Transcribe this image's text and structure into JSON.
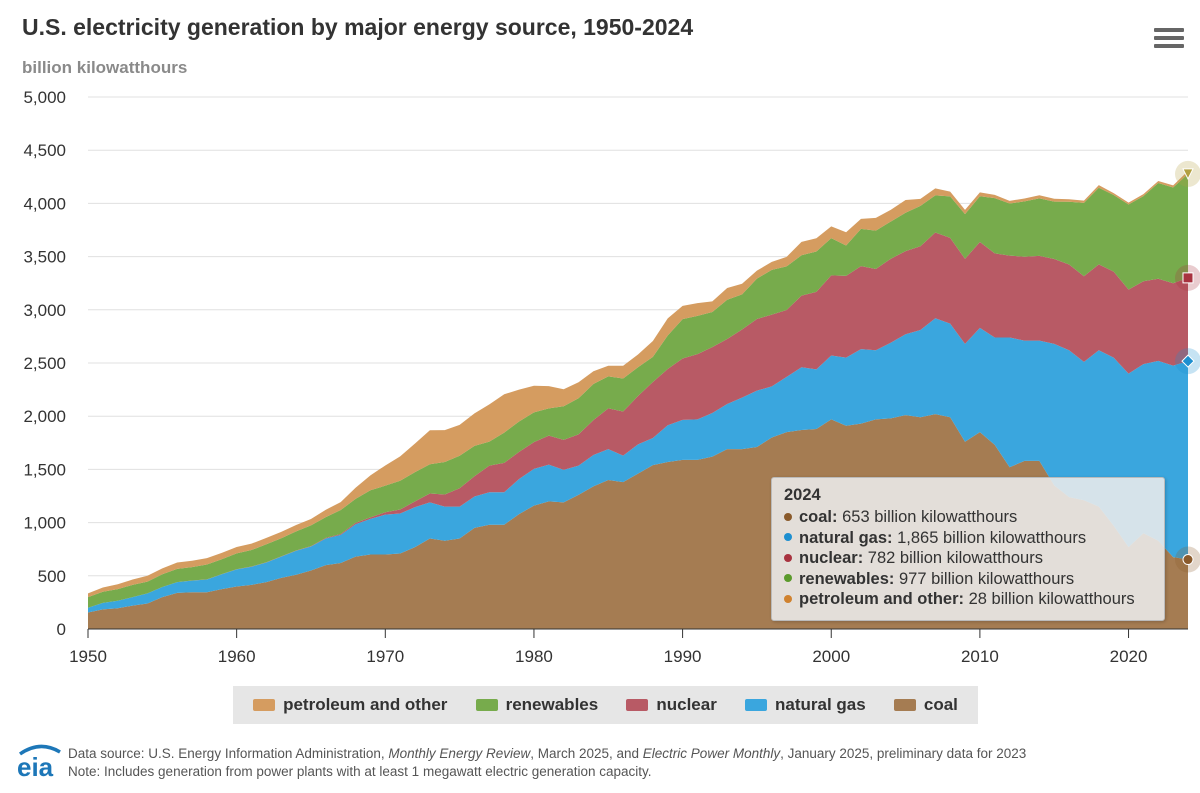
{
  "header": {
    "title": "U.S. electricity generation by major energy source, 1950-2024",
    "subtitle": "billion kilowatthours",
    "menu_icon": "hamburger-menu-icon"
  },
  "chart_data": {
    "type": "area",
    "stacked": true,
    "title": "U.S. electricity generation by major energy source, 1950-2024",
    "ylabel": "billion kilowatthours",
    "xlim": [
      1950,
      2024
    ],
    "ylim": [
      0,
      5000
    ],
    "y_ticks": [
      0,
      500,
      1000,
      1500,
      2000,
      2500,
      3000,
      3500,
      4000,
      4500,
      5000
    ],
    "y_tick_labels": [
      "0",
      "500",
      "1,000",
      "1,500",
      "2,000",
      "2,500",
      "3,000",
      "3,500",
      "4,000",
      "4,500",
      "5,000"
    ],
    "x_ticks": [
      1950,
      1960,
      1970,
      1980,
      1990,
      2000,
      2010,
      2020
    ],
    "x_tick_labels": [
      "1950",
      "1960",
      "1970",
      "1980",
      "1990",
      "2000",
      "2010",
      "2020"
    ],
    "x": [
      1950,
      1951,
      1952,
      1953,
      1954,
      1955,
      1956,
      1957,
      1958,
      1959,
      1960,
      1961,
      1962,
      1963,
      1964,
      1965,
      1966,
      1967,
      1968,
      1969,
      1970,
      1971,
      1972,
      1973,
      1974,
      1975,
      1976,
      1977,
      1978,
      1979,
      1980,
      1981,
      1982,
      1983,
      1984,
      1985,
      1986,
      1987,
      1988,
      1989,
      1990,
      1991,
      1992,
      1993,
      1994,
      1995,
      1996,
      1997,
      1998,
      1999,
      2000,
      2001,
      2002,
      2003,
      2004,
      2005,
      2006,
      2007,
      2008,
      2009,
      2010,
      2011,
      2012,
      2013,
      2014,
      2015,
      2016,
      2017,
      2018,
      2019,
      2020,
      2021,
      2022,
      2023,
      2024
    ],
    "series": [
      {
        "name": "coal",
        "color": "#a57c52",
        "values": [
          155,
          185,
          195,
          220,
          240,
          300,
          340,
          345,
          345,
          375,
          400,
          415,
          440,
          480,
          510,
          550,
          600,
          620,
          680,
          700,
          700,
          710,
          770,
          850,
          830,
          850,
          950,
          980,
          980,
          1080,
          1160,
          1200,
          1190,
          1260,
          1340,
          1400,
          1380,
          1460,
          1540,
          1570,
          1590,
          1590,
          1620,
          1690,
          1690,
          1710,
          1800,
          1850,
          1870,
          1880,
          1970,
          1910,
          1930,
          1970,
          1980,
          2010,
          1990,
          2020,
          1990,
          1760,
          1850,
          1730,
          1520,
          1580,
          1580,
          1350,
          1240,
          1210,
          1150,
          970,
          770,
          900,
          830,
          675,
          653
        ]
      },
      {
        "name": "natural gas",
        "color": "#3aa6de",
        "values": [
          45,
          60,
          70,
          80,
          95,
          95,
          100,
          110,
          120,
          140,
          160,
          170,
          185,
          200,
          225,
          225,
          250,
          265,
          305,
          335,
          375,
          375,
          375,
          340,
          320,
          300,
          295,
          305,
          305,
          330,
          345,
          345,
          305,
          275,
          295,
          290,
          250,
          275,
          255,
          345,
          375,
          380,
          410,
          425,
          485,
          530,
          480,
          520,
          590,
          560,
          600,
          640,
          700,
          650,
          710,
          760,
          820,
          900,
          880,
          920,
          980,
          1010,
          1220,
          1130,
          1130,
          1330,
          1380,
          1300,
          1470,
          1580,
          1630,
          1590,
          1690,
          1800,
          1865
        ]
      },
      {
        "name": "nuclear",
        "color": "#b85a65",
        "values": [
          0,
          0,
          0,
          0,
          0,
          0,
          0,
          1,
          1,
          1,
          1,
          2,
          2,
          3,
          3,
          4,
          6,
          8,
          13,
          14,
          22,
          38,
          54,
          83,
          114,
          173,
          191,
          251,
          276,
          255,
          251,
          273,
          283,
          294,
          328,
          384,
          414,
          455,
          527,
          529,
          577,
          613,
          619,
          610,
          640,
          673,
          675,
          628,
          673,
          728,
          754,
          769,
          780,
          764,
          789,
          782,
          787,
          806,
          806,
          799,
          807,
          790,
          769,
          789,
          797,
          797,
          806,
          805,
          807,
          809,
          790,
          778,
          772,
          775,
          782
        ]
      },
      {
        "name": "renewables",
        "color": "#77ab4c",
        "values": [
          100,
          105,
          110,
          115,
          110,
          120,
          125,
          125,
          140,
          140,
          150,
          155,
          170,
          170,
          180,
          195,
          195,
          225,
          225,
          255,
          250,
          270,
          275,
          275,
          305,
          305,
          285,
          225,
          285,
          285,
          280,
          255,
          315,
          340,
          340,
          300,
          310,
          270,
          235,
          315,
          370,
          360,
          330,
          370,
          330,
          380,
          420,
          410,
          380,
          380,
          350,
          285,
          350,
          360,
          350,
          360,
          380,
          350,
          390,
          420,
          430,
          520,
          490,
          520,
          540,
          540,
          590,
          690,
          720,
          720,
          800,
          800,
          900,
          900,
          977
        ]
      },
      {
        "name": "petroleum and other",
        "color": "#d59c60",
        "values": [
          35,
          40,
          45,
          50,
          55,
          55,
          60,
          60,
          60,
          60,
          60,
          60,
          60,
          60,
          60,
          60,
          70,
          75,
          105,
          140,
          190,
          230,
          270,
          320,
          300,
          290,
          305,
          350,
          360,
          300,
          250,
          210,
          160,
          150,
          120,
          100,
          120,
          120,
          150,
          160,
          125,
          120,
          100,
          110,
          100,
          75,
          75,
          90,
          125,
          125,
          110,
          125,
          95,
          120,
          110,
          120,
          65,
          65,
          45,
          40,
          37,
          30,
          25,
          27,
          30,
          27,
          23,
          21,
          25,
          18,
          17,
          19,
          19,
          19,
          28
        ]
      }
    ],
    "legend": [
      "petroleum and other",
      "renewables",
      "nuclear",
      "natural gas",
      "coal"
    ],
    "legend_placement": "bottom",
    "tooltip": {
      "year": "2024",
      "rows": [
        {
          "label": "coal:",
          "value": "653 billion kilowatthours",
          "color": "#8a5a2b"
        },
        {
          "label": "natural gas:",
          "value": "1,865 billion kilowatthours",
          "color": "#1d8fd0"
        },
        {
          "label": "nuclear:",
          "value": "782 billion kilowatthours",
          "color": "#a8323f"
        },
        {
          "label": "renewables:",
          "value": "977 billion kilowatthours",
          "color": "#5b9a2c"
        },
        {
          "label": "petroleum and other:",
          "value": "28 billion kilowatthours",
          "color": "#d0822f"
        }
      ]
    }
  },
  "footer": {
    "logo_text": "eia",
    "source_prefix": "Data source: U.S. Energy Information Administration, ",
    "source_pub1": "Monthly Energy Review",
    "source_mid": ", March 2025, and ",
    "source_pub2": "Electric Power Monthly",
    "source_suffix": ", January 2025, preliminary data for 2023",
    "note": "Note: Includes generation from power plants with at least 1 megawatt electric generation capacity."
  }
}
